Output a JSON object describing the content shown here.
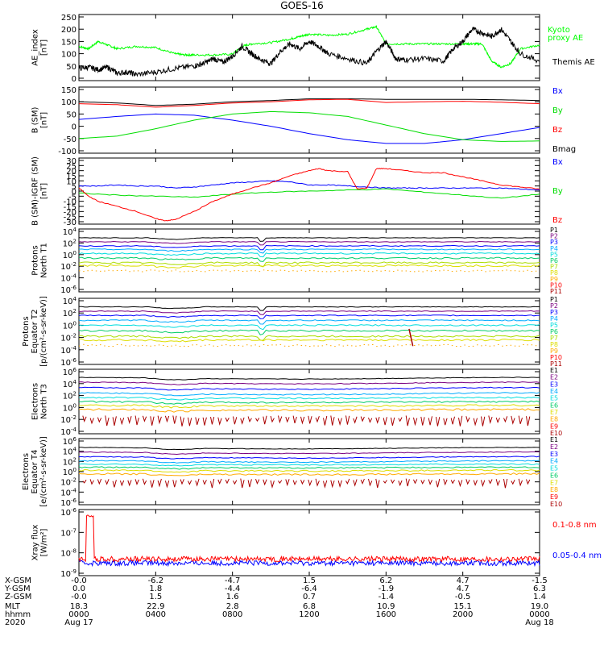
{
  "title": "GOES-16",
  "colors": {
    "black": "#000000",
    "red": "#ff0000",
    "green": "#00dd00",
    "blue": "#0000ff",
    "brightgreen": "#00ff00"
  },
  "panels": [
    {
      "id": "ae",
      "ylabel": [
        "AE_index",
        "[nT]"
      ],
      "scale": "linear",
      "ticks": [
        "250",
        "200",
        "150",
        "100",
        "50",
        "0"
      ],
      "legend": [
        {
          "text": "Kyoto",
          "color": "#00ff00"
        },
        {
          "text": "proxy AE",
          "color": "#00ff00"
        },
        {
          "text": "Themis AE",
          "color": "#000000"
        }
      ]
    },
    {
      "id": "bsm",
      "ylabel": [
        "B (SM)",
        "[nT]"
      ],
      "scale": "linear",
      "ticks": [
        "150",
        "100",
        "50",
        "0",
        "-50",
        "-100"
      ],
      "legend": [
        {
          "text": "Bx",
          "color": "#0000ff"
        },
        {
          "text": "By",
          "color": "#00dd00"
        },
        {
          "text": "Bz",
          "color": "#ff0000"
        },
        {
          "text": "Bmag",
          "color": "#000000"
        }
      ]
    },
    {
      "id": "bigrf",
      "ylabel": [
        "B (SM)-IGRF (SM)",
        "[nT]"
      ],
      "scale": "linear",
      "ticks": [
        "30",
        "25",
        "20",
        "15",
        "10",
        "5",
        "0",
        "-5",
        "-10",
        "-15",
        "-20",
        "-25",
        "-30"
      ],
      "legend": [
        {
          "text": "Bx",
          "color": "#0000ff"
        },
        {
          "text": "By",
          "color": "#00dd00"
        },
        {
          "text": "Bz",
          "color": "#ff0000"
        }
      ]
    },
    {
      "id": "protN",
      "ylabel": [
        "Protons",
        "North T1"
      ],
      "scale": "log",
      "ticks": [
        "10^4",
        "10^2",
        "10^0",
        "10^-2",
        "10^-4",
        "10^-6"
      ],
      "legend": [
        "P1",
        "P2",
        "P3",
        "P4",
        "P5",
        "P6",
        "P7",
        "P8",
        "P9",
        "P10",
        "P11"
      ]
    },
    {
      "id": "protE",
      "ylabel": [
        "Protons",
        "Equator T2",
        "[p/(cm²-s-sr-keV)]"
      ],
      "scale": "log",
      "ticks": [
        "10^4",
        "10^2",
        "10^0",
        "10^-2",
        "10^-4",
        "10^-6"
      ],
      "legend": [
        "P1",
        "P2",
        "P3",
        "P4",
        "P5",
        "P6",
        "P7",
        "P8",
        "P9",
        "P10",
        "P11"
      ]
    },
    {
      "id": "elecN",
      "ylabel": [
        "Electrons",
        "North T3"
      ],
      "scale": "log",
      "ticks": [
        "10^6",
        "10^4",
        "10^2",
        "10^0",
        "10^-2",
        "10^-4"
      ],
      "legend": [
        "E1",
        "E2",
        "E3",
        "E4",
        "E5",
        "E6",
        "E7",
        "E8",
        "E9",
        "E10"
      ]
    },
    {
      "id": "elecE",
      "ylabel": [
        "Electrons",
        "Equator T4",
        "[e/(cm²-s-sr-keV)]"
      ],
      "scale": "log",
      "ticks": [
        "10^6",
        "10^4",
        "10^2",
        "10^0",
        "10^-2",
        "10^-4",
        "10^-6"
      ],
      "legend": [
        "E1",
        "E2",
        "E3",
        "E4",
        "E5",
        "E6",
        "E7",
        "E8",
        "E9",
        "E10"
      ]
    },
    {
      "id": "xray",
      "ylabel": [
        "Xray flux",
        "[W/m²]"
      ],
      "scale": "log",
      "ticks": [
        "10^-6",
        "10^-7",
        "10^-8",
        "10^-9"
      ],
      "legend": [
        {
          "text": "0.1-0.8 nm",
          "color": "#ff0000"
        },
        {
          "text": "0.05-0.4 nm",
          "color": "#0000ff"
        }
      ]
    }
  ],
  "channel_colors_P": [
    "#000000",
    "#7a0080",
    "#0000ff",
    "#00aaff",
    "#00dddd",
    "#00cc66",
    "#aadd00",
    "#dddd00",
    "#ffaa00",
    "#ff0000",
    "#aa0000"
  ],
  "channel_colors_E": [
    "#000000",
    "#7a0080",
    "#0000ff",
    "#00aaff",
    "#00dddd",
    "#00cc66",
    "#dddd00",
    "#ffaa00",
    "#ff0000",
    "#aa0000"
  ],
  "xaxis": {
    "row_labels": [
      "X-GSM",
      "Y-GSM",
      "Z-GSM",
      "MLT",
      "hhmm",
      "2020"
    ],
    "columns": [
      {
        "x": "-0.0",
        "y": "0.0",
        "z": "-0.0",
        "mlt": "18.3",
        "hhmm": "0000",
        "date": "Aug 17"
      },
      {
        "x": "-6.2",
        "y": "1.8",
        "z": "1.5",
        "mlt": "22.9",
        "hhmm": "0400",
        "date": ""
      },
      {
        "x": "-4.7",
        "y": "-4.4",
        "z": "1.6",
        "mlt": "2.8",
        "hhmm": "0800",
        "date": ""
      },
      {
        "x": "1.5",
        "y": "-6.4",
        "z": "0.7",
        "mlt": "6.8",
        "hhmm": "1200",
        "date": ""
      },
      {
        "x": "6.2",
        "y": "-1.9",
        "z": "-1.4",
        "mlt": "10.9",
        "hhmm": "1600",
        "date": ""
      },
      {
        "x": "4.7",
        "y": "4.7",
        "z": "-0.5",
        "mlt": "15.1",
        "hhmm": "2000",
        "date": ""
      },
      {
        "x": "-1.5",
        "y": "6.3",
        "z": "1.4",
        "mlt": "19.0",
        "hhmm": "0000",
        "date": "Aug 18"
      }
    ]
  },
  "chart_data": {
    "type": "line",
    "title": "GOES-16",
    "x_range_hours": [
      0,
      24
    ],
    "x_tick_hours": [
      0,
      4,
      8,
      12,
      16,
      20,
      24
    ],
    "panels": {
      "ae": {
        "ylim": [
          0,
          250
        ],
        "series": [
          {
            "name": "Kyoto proxy AE",
            "color": "#00ff00",
            "x": [
              0,
              0.5,
              1,
              1.5,
              2,
              3,
              4,
              5,
              5.5,
              6,
              7,
              8,
              8.5,
              9,
              10,
              11,
              11.5,
              12,
              13,
              14,
              15,
              15.5,
              16,
              17,
              18,
              19,
              20,
              20.5,
              21,
              21.5,
              22,
              22.5,
              23,
              24
            ],
            "y": [
              130,
              120,
              150,
              135,
              120,
              130,
              125,
              100,
              95,
              95,
              95,
              98,
              130,
              140,
              145,
              160,
              170,
              180,
              175,
              180,
              200,
              210,
              140,
              140,
              140,
              140,
              140,
              140,
              140,
              70,
              45,
              60,
              120,
              135
            ]
          },
          {
            "name": "Themis AE",
            "color": "#000000",
            "x": [
              0,
              0.5,
              1,
              1.5,
              2,
              2.5,
              3,
              4,
              5,
              6,
              6.5,
              7,
              7.5,
              8,
              8.5,
              9,
              9.5,
              10,
              10.5,
              11,
              11.5,
              12,
              12.5,
              13,
              14,
              15,
              15.5,
              16,
              16.5,
              17,
              18,
              19,
              19.5,
              20,
              20.5,
              21,
              21.5,
              22,
              22.5,
              23,
              24
            ],
            "y": [
              40,
              45,
              35,
              45,
              20,
              25,
              15,
              25,
              40,
              50,
              60,
              80,
              65,
              90,
              130,
              100,
              75,
              60,
              110,
              140,
              120,
              150,
              130,
              100,
              80,
              60,
              110,
              150,
              80,
              75,
              80,
              70,
              120,
              150,
              200,
              185,
              170,
              200,
              150,
              100,
              70
            ]
          }
        ]
      },
      "bsm": {
        "ylim": [
          -100,
          150
        ],
        "series": [
          {
            "name": "Bmag",
            "color": "#000000",
            "x": [
              0,
              2,
              4,
              6,
              8,
              10,
              12,
              14,
              16,
              18,
              20,
              22,
              24
            ],
            "y": [
              100,
              95,
              85,
              90,
              100,
              105,
              112,
              112,
              110,
              110,
              110,
              108,
              105
            ]
          },
          {
            "name": "Bz",
            "color": "#ff0000",
            "x": [
              0,
              2,
              4,
              6,
              8,
              10,
              12,
              14,
              16,
              18,
              20,
              22,
              24
            ],
            "y": [
              92,
              88,
              78,
              85,
              95,
              100,
              108,
              110,
              97,
              100,
              102,
              98,
              92
            ]
          },
          {
            "name": "Bx",
            "color": "#0000ff",
            "x": [
              0,
              2,
              4,
              6,
              8,
              10,
              12,
              14,
              16,
              18,
              20,
              22,
              24
            ],
            "y": [
              28,
              40,
              50,
              45,
              25,
              0,
              -30,
              -55,
              -70,
              -70,
              -55,
              -30,
              -5
            ]
          },
          {
            "name": "By",
            "color": "#00dd00",
            "x": [
              0,
              2,
              4,
              6,
              8,
              10,
              12,
              14,
              16,
              18,
              20,
              22,
              24
            ],
            "y": [
              -50,
              -40,
              -10,
              25,
              50,
              60,
              55,
              40,
              5,
              -30,
              -55,
              -62,
              -60
            ]
          }
        ]
      },
      "bigrf": {
        "ylim": [
          -30,
          30
        ],
        "series": [
          {
            "name": "Bx",
            "color": "#0000ff",
            "x": [
              0,
              1,
              2,
              3,
              4,
              5,
              6,
              7,
              8,
              9,
              10,
              11,
              12,
              13,
              14,
              15,
              16,
              17,
              18,
              19,
              20,
              21,
              22,
              23,
              24
            ],
            "y": [
              5,
              5,
              6,
              5,
              5,
              3,
              4,
              6,
              8,
              9,
              10,
              9,
              6,
              6,
              5,
              4,
              3,
              3,
              3,
              3,
              3,
              3,
              3,
              2,
              1
            ]
          },
          {
            "name": "By",
            "color": "#00dd00",
            "x": [
              0,
              2,
              4,
              6,
              8,
              10,
              12,
              14,
              16,
              18,
              20,
              22,
              24
            ],
            "y": [
              -2,
              -4,
              -5,
              -6,
              -3,
              -1,
              0,
              1,
              2,
              -1,
              -4,
              -7,
              -3
            ]
          },
          {
            "name": "Bz",
            "color": "#ff0000",
            "x": [
              0,
              0.5,
              1,
              2,
              3,
              4,
              4.5,
              5,
              6,
              7,
              8,
              9,
              10,
              11,
              12,
              12.5,
              13,
              14,
              14.5,
              15,
              15.5,
              16,
              17,
              18,
              19,
              20,
              21,
              22,
              23,
              24
            ],
            "y": [
              3,
              -5,
              -10,
              -15,
              -20,
              -27,
              -29,
              -28,
              -20,
              -10,
              -3,
              3,
              8,
              15,
              20,
              22,
              20,
              19,
              2,
              3,
              22,
              22,
              20,
              18,
              18,
              14,
              10,
              6,
              4,
              2
            ]
          }
        ]
      },
      "protN": {
        "ylim_log10": [
          -6,
          4
        ],
        "series": [
          {
            "name": "P1",
            "y_log10": 2.9
          },
          {
            "name": "P2",
            "y_log10": 2.2
          },
          {
            "name": "P3",
            "y_log10": 1.5
          },
          {
            "name": "P4",
            "y_log10": 0.9
          },
          {
            "name": "P5",
            "y_log10": 0.2
          },
          {
            "name": "P6",
            "y_log10": -0.6
          },
          {
            "name": "P7",
            "y_log10": -1.4
          },
          {
            "name": "P8",
            "y_log10": -1.9
          },
          {
            "name": "P9",
            "y_log10": -2.8
          }
        ]
      },
      "protE": {
        "ylim_log10": [
          -6,
          4
        ],
        "series": [
          {
            "name": "P1",
            "y_log10": 3.0
          },
          {
            "name": "P2",
            "y_log10": 2.3
          },
          {
            "name": "P3",
            "y_log10": 1.6
          },
          {
            "name": "P4",
            "y_log10": 0.8
          },
          {
            "name": "P5",
            "y_log10": 0.0
          },
          {
            "name": "P6",
            "y_log10": -0.9
          },
          {
            "name": "P7",
            "y_log10": -1.8
          },
          {
            "name": "P8",
            "y_log10": -2.4
          },
          {
            "name": "P9",
            "y_log10": -3.3
          }
        ]
      },
      "elecN": {
        "ylim_log10": [
          -4,
          6
        ],
        "series": [
          {
            "name": "E1",
            "y_log10": 4.9
          },
          {
            "name": "E2",
            "y_log10": 4.1
          },
          {
            "name": "E3",
            "y_log10": 3.2
          },
          {
            "name": "E4",
            "y_log10": 2.3
          },
          {
            "name": "E5",
            "y_log10": 1.6
          },
          {
            "name": "E6",
            "y_log10": 0.9
          },
          {
            "name": "E7",
            "y_log10": 0.3
          },
          {
            "name": "E8",
            "y_log10": -0.4
          },
          {
            "name": "E9",
            "y_log10": -1.6
          }
        ]
      },
      "elecE": {
        "ylim_log10": [
          -6,
          6
        ],
        "series": [
          {
            "name": "E1",
            "y_log10": 4.6
          },
          {
            "name": "E2",
            "y_log10": 3.7
          },
          {
            "name": "E3",
            "y_log10": 2.8
          },
          {
            "name": "E4",
            "y_log10": 2.0
          },
          {
            "name": "E5",
            "y_log10": 1.4
          },
          {
            "name": "E6",
            "y_log10": 0.8
          },
          {
            "name": "E7",
            "y_log10": 0.2
          },
          {
            "name": "E8",
            "y_log10": -0.5
          },
          {
            "name": "E9",
            "y_log10": -1.6
          }
        ]
      },
      "xray": {
        "ylim_log10": [
          -9,
          -6
        ],
        "series": [
          {
            "name": "0.1-0.8 nm",
            "color": "#ff0000",
            "y_log10": -8.3
          },
          {
            "name": "0.05-0.4 nm",
            "color": "#0000ff",
            "y_log10": -8.5
          }
        ]
      }
    }
  }
}
